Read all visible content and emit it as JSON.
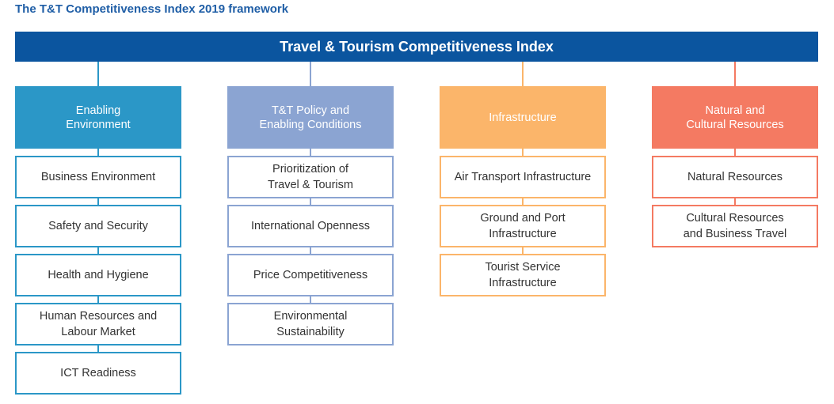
{
  "figure_title": "The T&T Competitiveness Index 2019 framework",
  "index_title": "Travel & Tourism Competitiveness Index",
  "colors": {
    "title": "#1f5ea6",
    "index_bar": "#0b559f"
  },
  "columns": [
    {
      "pillar": "Enabling\nEnvironment",
      "fill": "#2b97c7",
      "line": "#2b97c7",
      "border": "#2b97c7",
      "items": [
        "Business Environment",
        "Safety and Security",
        "Health and Hygiene",
        "Human Resources and\nLabour Market",
        "ICT Readiness"
      ]
    },
    {
      "pillar": "T&T Policy and\nEnabling Conditions",
      "fill": "#8ba4d2",
      "line": "#8ba4d2",
      "border": "#8ba4d2",
      "items": [
        "Prioritization of\nTravel & Tourism",
        "International Openness",
        "Price Competitiveness",
        "Environmental\nSustainability"
      ]
    },
    {
      "pillar": "Infrastructure",
      "fill": "#fbb56a",
      "line": "#fbb56a",
      "border": "#fbb56a",
      "items": [
        "Air Transport Infrastructure",
        "Ground and Port\nInfrastructure",
        "Tourist Service\nInfrastructure"
      ]
    },
    {
      "pillar": "Natural and\nCultural Resources",
      "fill": "#f47a62",
      "line": "#f47a62",
      "border": "#f47a62",
      "items": [
        "Natural Resources",
        "Cultural Resources\nand Business Travel"
      ]
    }
  ]
}
